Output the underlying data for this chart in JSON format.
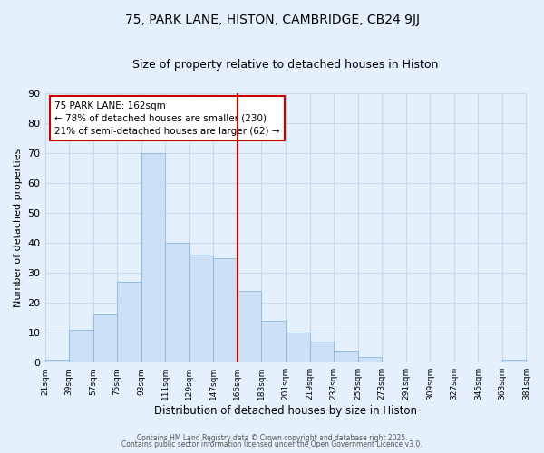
{
  "title": "75, PARK LANE, HISTON, CAMBRIDGE, CB24 9JJ",
  "subtitle": "Size of property relative to detached houses in Histon",
  "xlabel": "Distribution of detached houses by size in Histon",
  "ylabel": "Number of detached properties",
  "bar_color": "#cce0f5",
  "bar_edge_color": "#88b8e0",
  "background_color": "#e4f0fb",
  "grid_color": "#c8d8ea",
  "vline_x": 165,
  "vline_color": "#cc0000",
  "bin_edges": [
    21,
    39,
    57,
    75,
    93,
    111,
    129,
    147,
    165,
    183,
    201,
    219,
    237,
    255,
    273,
    291,
    309,
    327,
    345,
    363,
    381
  ],
  "bar_heights": [
    1,
    11,
    16,
    27,
    70,
    40,
    36,
    35,
    24,
    14,
    10,
    7,
    4,
    2,
    0,
    0,
    0,
    0,
    0,
    1
  ],
  "ylim": [
    0,
    90
  ],
  "yticks": [
    0,
    10,
    20,
    30,
    40,
    50,
    60,
    70,
    80,
    90
  ],
  "xtick_labels": [
    "21sqm",
    "39sqm",
    "57sqm",
    "75sqm",
    "93sqm",
    "111sqm",
    "129sqm",
    "147sqm",
    "165sqm",
    "183sqm",
    "201sqm",
    "219sqm",
    "237sqm",
    "255sqm",
    "273sqm",
    "291sqm",
    "309sqm",
    "327sqm",
    "345sqm",
    "363sqm",
    "381sqm"
  ],
  "annotation_title": "75 PARK LANE: 162sqm",
  "annotation_line1": "← 78% of detached houses are smaller (230)",
  "annotation_line2": "21% of semi-detached houses are larger (62) →",
  "footer1": "Contains HM Land Registry data © Crown copyright and database right 2025.",
  "footer2": "Contains public sector information licensed under the Open Government Licence v3.0."
}
